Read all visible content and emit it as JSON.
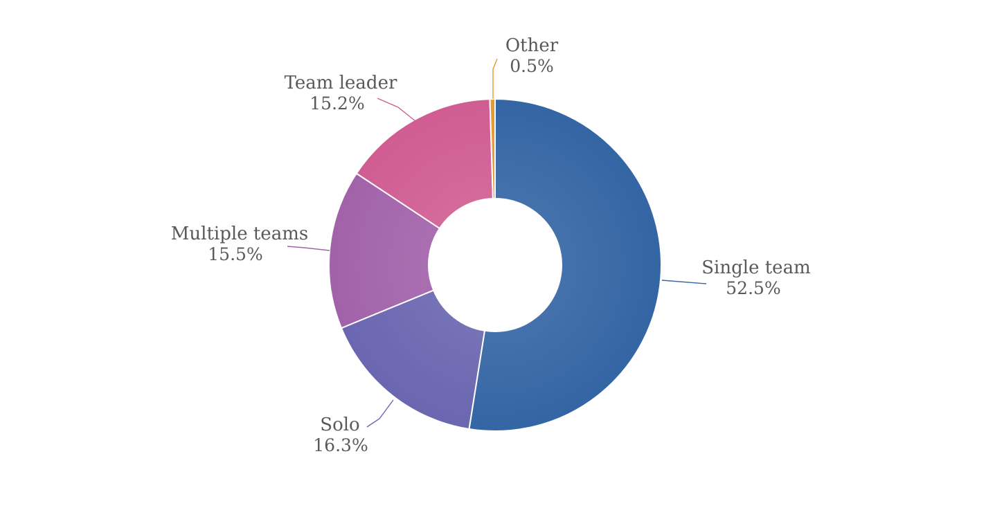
{
  "chart_data": {
    "type": "pie",
    "subtype": "donut",
    "title": "",
    "slices": [
      {
        "label": "Single team",
        "value": 52.5,
        "display": "52.5%",
        "color": "#3465A4"
      },
      {
        "label": "Solo",
        "value": 16.3,
        "display": "16.3%",
        "color": "#6A66B0"
      },
      {
        "label": "Multiple teams",
        "value": 15.5,
        "display": "15.5%",
        "color": "#A262AA"
      },
      {
        "label": "Team leader",
        "value": 15.2,
        "display": "15.2%",
        "color": "#D05D92"
      },
      {
        "label": "Other",
        "value": 0.5,
        "display": "0.5%",
        "color": "#E8982E"
      }
    ],
    "legend": "none",
    "data_labels": "outside with leader lines"
  }
}
